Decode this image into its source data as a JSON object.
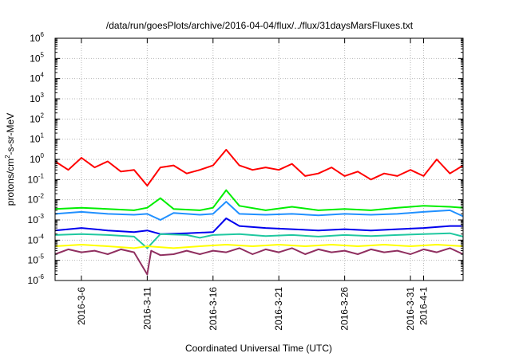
{
  "chart_data": {
    "type": "line",
    "title": "/data/run/goesPlots/archive/2016-04-04/flux/../flux/31daysMarsFluxes.txt",
    "xlabel": "Coordinated Universal Time (UTC)",
    "ylabel_parts": [
      "protons/cm",
      "2",
      "-s-sr-MeV"
    ],
    "y_scale": "log",
    "ylim": [
      1e-06,
      1000000.0
    ],
    "y_ticks": [
      {
        "base": "10",
        "exp": "-6"
      },
      {
        "base": "10",
        "exp": "-5"
      },
      {
        "base": "10",
        "exp": "-4"
      },
      {
        "base": "10",
        "exp": "-3"
      },
      {
        "base": "10",
        "exp": "-2"
      },
      {
        "base": "10",
        "exp": "-1"
      },
      {
        "base": "10",
        "exp": "0"
      },
      {
        "base": "10",
        "exp": "1"
      },
      {
        "base": "10",
        "exp": "2"
      },
      {
        "base": "10",
        "exp": "3"
      },
      {
        "base": "10",
        "exp": "4"
      },
      {
        "base": "10",
        "exp": "5"
      },
      {
        "base": "10",
        "exp": "6"
      }
    ],
    "xlim": [
      "2016-03-04",
      "2016-04-04"
    ],
    "x_ticks": [
      "2016-3-6",
      "2016-3-11",
      "2016-3-16",
      "2016-3-21",
      "2016-3-26",
      "2016-3-31",
      "2016-4-1"
    ],
    "grid": true,
    "series": [
      {
        "color": "#ff0000",
        "points": [
          [
            "2016-03-04",
            0.8
          ],
          [
            "2016-03-05",
            0.3
          ],
          [
            "2016-03-06",
            1.2
          ],
          [
            "2016-03-07",
            0.4
          ],
          [
            "2016-03-08",
            0.8
          ],
          [
            "2016-03-09",
            0.25
          ],
          [
            "2016-03-10",
            0.3
          ],
          [
            "2016-03-11",
            0.05
          ],
          [
            "2016-03-12",
            0.4
          ],
          [
            "2016-03-13",
            0.5
          ],
          [
            "2016-03-14",
            0.2
          ],
          [
            "2016-03-15",
            0.3
          ],
          [
            "2016-03-16",
            0.5
          ],
          [
            "2016-03-17",
            3
          ],
          [
            "2016-03-18",
            0.5
          ],
          [
            "2016-03-19",
            0.3
          ],
          [
            "2016-03-20",
            0.4
          ],
          [
            "2016-03-21",
            0.3
          ],
          [
            "2016-03-22",
            0.6
          ],
          [
            "2016-03-23",
            0.15
          ],
          [
            "2016-03-24",
            0.2
          ],
          [
            "2016-03-25",
            0.4
          ],
          [
            "2016-03-26",
            0.15
          ],
          [
            "2016-03-27",
            0.25
          ],
          [
            "2016-03-28",
            0.1
          ],
          [
            "2016-03-29",
            0.2
          ],
          [
            "2016-03-30",
            0.15
          ],
          [
            "2016-03-31",
            0.3
          ],
          [
            "2016-04-01",
            0.15
          ],
          [
            "2016-04-02",
            1.0
          ],
          [
            "2016-04-03",
            0.2
          ],
          [
            "2016-04-04",
            0.5
          ]
        ]
      },
      {
        "color": "#00ee00",
        "points": [
          [
            "2016-03-04",
            0.0035
          ],
          [
            "2016-03-06",
            0.004
          ],
          [
            "2016-03-08",
            0.0035
          ],
          [
            "2016-03-10",
            0.003
          ],
          [
            "2016-03-11",
            0.004
          ],
          [
            "2016-03-12",
            0.012
          ],
          [
            "2016-03-13",
            0.0035
          ],
          [
            "2016-03-15",
            0.003
          ],
          [
            "2016-03-16",
            0.004
          ],
          [
            "2016-03-17",
            0.03
          ],
          [
            "2016-03-18",
            0.005
          ],
          [
            "2016-03-20",
            0.003
          ],
          [
            "2016-03-22",
            0.0045
          ],
          [
            "2016-03-24",
            0.003
          ],
          [
            "2016-03-26",
            0.0035
          ],
          [
            "2016-03-28",
            0.003
          ],
          [
            "2016-03-30",
            0.004
          ],
          [
            "2016-04-01",
            0.005
          ],
          [
            "2016-04-03",
            0.0045
          ],
          [
            "2016-04-04",
            0.004
          ]
        ]
      },
      {
        "color": "#2090ff",
        "points": [
          [
            "2016-03-04",
            0.002
          ],
          [
            "2016-03-06",
            0.0025
          ],
          [
            "2016-03-08",
            0.002
          ],
          [
            "2016-03-10",
            0.0018
          ],
          [
            "2016-03-11",
            0.002
          ],
          [
            "2016-03-12",
            0.001
          ],
          [
            "2016-03-13",
            0.0022
          ],
          [
            "2016-03-15",
            0.0018
          ],
          [
            "2016-03-16",
            0.002
          ],
          [
            "2016-03-17",
            0.008
          ],
          [
            "2016-03-18",
            0.002
          ],
          [
            "2016-03-20",
            0.0018
          ],
          [
            "2016-03-22",
            0.002
          ],
          [
            "2016-03-24",
            0.0017
          ],
          [
            "2016-03-26",
            0.002
          ],
          [
            "2016-03-28",
            0.0018
          ],
          [
            "2016-03-30",
            0.002
          ],
          [
            "2016-04-01",
            0.0025
          ],
          [
            "2016-04-03",
            0.003
          ],
          [
            "2016-04-04",
            0.0015
          ]
        ]
      },
      {
        "color": "#0000ee",
        "points": [
          [
            "2016-03-04",
            0.0003
          ],
          [
            "2016-03-06",
            0.0004
          ],
          [
            "2016-03-08",
            0.0003
          ],
          [
            "2016-03-10",
            0.00025
          ],
          [
            "2016-03-11",
            0.0003
          ],
          [
            "2016-03-12",
            0.0002
          ],
          [
            "2016-03-14",
            0.00022
          ],
          [
            "2016-03-16",
            0.00025
          ],
          [
            "2016-03-17",
            0.0012
          ],
          [
            "2016-03-18",
            0.0005
          ],
          [
            "2016-03-20",
            0.0004
          ],
          [
            "2016-03-22",
            0.00035
          ],
          [
            "2016-03-24",
            0.0003
          ],
          [
            "2016-03-26",
            0.00035
          ],
          [
            "2016-03-28",
            0.0003
          ],
          [
            "2016-03-30",
            0.00035
          ],
          [
            "2016-04-01",
            0.0004
          ],
          [
            "2016-04-03",
            0.0005
          ],
          [
            "2016-04-04",
            0.0005
          ]
        ]
      },
      {
        "color": "#20c8a0",
        "points": [
          [
            "2016-03-04",
            0.00018
          ],
          [
            "2016-03-06",
            0.0002
          ],
          [
            "2016-03-08",
            0.00018
          ],
          [
            "2016-03-10",
            0.00015
          ],
          [
            "2016-03-11",
            4e-05
          ],
          [
            "2016-03-12",
            0.0002
          ],
          [
            "2016-03-14",
            0.00018
          ],
          [
            "2016-03-15",
            0.00013
          ],
          [
            "2016-03-16",
            0.00018
          ],
          [
            "2016-03-18",
            0.0002
          ],
          [
            "2016-03-20",
            0.00016
          ],
          [
            "2016-03-22",
            0.00018
          ],
          [
            "2016-03-24",
            0.00015
          ],
          [
            "2016-03-26",
            0.00018
          ],
          [
            "2016-03-28",
            0.00016
          ],
          [
            "2016-03-30",
            0.00018
          ],
          [
            "2016-04-01",
            0.0002
          ],
          [
            "2016-04-03",
            0.00022
          ],
          [
            "2016-04-04",
            0.00015
          ]
        ]
      },
      {
        "color": "#ffff00",
        "points": [
          [
            "2016-03-04",
            5e-05
          ],
          [
            "2016-03-06",
            6e-05
          ],
          [
            "2016-03-08",
            5e-05
          ],
          [
            "2016-03-10",
            4e-05
          ],
          [
            "2016-03-11",
            5e-05
          ],
          [
            "2016-03-13",
            4e-05
          ],
          [
            "2016-03-15",
            5e-05
          ],
          [
            "2016-03-17",
            6e-05
          ],
          [
            "2016-03-19",
            5e-05
          ],
          [
            "2016-03-21",
            6e-05
          ],
          [
            "2016-03-23",
            5e-05
          ],
          [
            "2016-03-25",
            6e-05
          ],
          [
            "2016-03-27",
            5e-05
          ],
          [
            "2016-03-29",
            6e-05
          ],
          [
            "2016-03-31",
            5e-05
          ],
          [
            "2016-04-02",
            6e-05
          ],
          [
            "2016-04-04",
            5e-05
          ]
        ]
      },
      {
        "color": "#903060",
        "points": [
          [
            "2016-03-04",
            2e-05
          ],
          [
            "2016-03-05",
            3.5e-05
          ],
          [
            "2016-03-06",
            2.5e-05
          ],
          [
            "2016-03-07",
            3e-05
          ],
          [
            "2016-03-08",
            2e-05
          ],
          [
            "2016-03-09",
            3.5e-05
          ],
          [
            "2016-03-10",
            2.5e-05
          ],
          [
            "2016-03-11",
            2e-06
          ],
          [
            "2016-03-11.3",
            3e-05
          ],
          [
            "2016-03-12",
            1.8e-05
          ],
          [
            "2016-03-13",
            2e-05
          ],
          [
            "2016-03-14",
            3e-05
          ],
          [
            "2016-03-15",
            2e-05
          ],
          [
            "2016-03-16",
            3e-05
          ],
          [
            "2016-03-17",
            2.5e-05
          ],
          [
            "2016-03-18",
            4e-05
          ],
          [
            "2016-03-19",
            2e-05
          ],
          [
            "2016-03-20",
            3.5e-05
          ],
          [
            "2016-03-21",
            2.5e-05
          ],
          [
            "2016-03-22",
            4e-05
          ],
          [
            "2016-03-23",
            2e-05
          ],
          [
            "2016-03-24",
            3.5e-05
          ],
          [
            "2016-03-25",
            2.5e-05
          ],
          [
            "2016-03-26",
            3e-05
          ],
          [
            "2016-03-27",
            2e-05
          ],
          [
            "2016-03-28",
            3.5e-05
          ],
          [
            "2016-03-29",
            2.5e-05
          ],
          [
            "2016-03-30",
            3e-05
          ],
          [
            "2016-03-31",
            2e-05
          ],
          [
            "2016-04-01",
            3.5e-05
          ],
          [
            "2016-04-02",
            2.5e-05
          ],
          [
            "2016-04-03",
            4e-05
          ],
          [
            "2016-04-04",
            2e-05
          ]
        ]
      }
    ]
  }
}
